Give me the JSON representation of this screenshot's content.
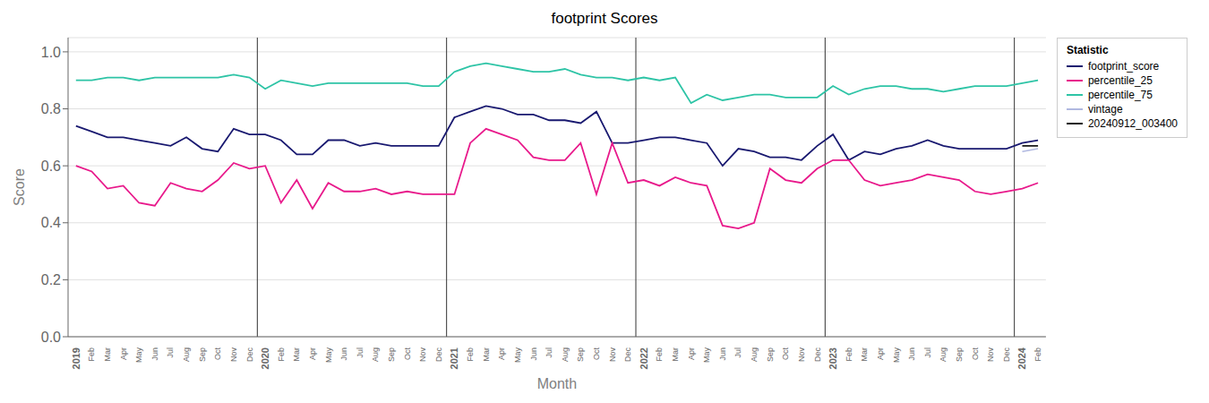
{
  "chart_data": {
    "type": "line",
    "title": "footprint Scores",
    "xlabel": "Month",
    "ylabel": "Score",
    "legend_title": "Statistic",
    "legend": "upper right",
    "grid": true,
    "ylim": [
      0.0,
      1.05
    ],
    "yticks": [
      {
        "value": 0,
        "label": "0.0"
      },
      0.2,
      0.4,
      0.6,
      0.8,
      {
        "value": 1,
        "label": "1.0"
      }
    ],
    "categories": [
      "2019",
      "Feb",
      "Mar",
      "Apr",
      "May",
      "Jun",
      "Jul",
      "Aug",
      "Sep",
      "Oct",
      "Nov",
      "Dec",
      "2020",
      "Feb",
      "Mar",
      "Apr",
      "May",
      "Jun",
      "Jul",
      "Aug",
      "Sep",
      "Oct",
      "Nov",
      "Dec",
      "2021",
      "Feb",
      "Mar",
      "Apr",
      "May",
      "Jun",
      "Jul",
      "Aug",
      "Sep",
      "Oct",
      "Nov",
      "Dec",
      "2022",
      "Feb",
      "Mar",
      "Apr",
      "May",
      "Jun",
      "Jul",
      "Aug",
      "Sep",
      "Oct",
      "Nov",
      "Dec",
      "2023",
      "Feb",
      "Mar",
      "Apr",
      "May",
      "Jun",
      "Jul",
      "Aug",
      "Sep",
      "Oct",
      "Nov",
      "Dec",
      "2024",
      "Feb"
    ],
    "series": [
      {
        "name": "footprint_score",
        "color": "#191970",
        "values": [
          0.74,
          0.72,
          0.7,
          0.7,
          0.69,
          0.68,
          0.67,
          0.7,
          0.66,
          0.65,
          0.73,
          0.71,
          0.71,
          0.69,
          0.64,
          0.64,
          0.69,
          0.69,
          0.67,
          0.68,
          0.67,
          0.67,
          0.67,
          0.67,
          0.77,
          0.79,
          0.81,
          0.8,
          0.78,
          0.78,
          0.76,
          0.76,
          0.75,
          0.79,
          0.68,
          0.68,
          0.69,
          0.7,
          0.7,
          0.69,
          0.68,
          0.6,
          0.66,
          0.65,
          0.63,
          0.63,
          0.62,
          0.67,
          0.71,
          0.62,
          0.65,
          0.64,
          0.66,
          0.67,
          0.69,
          0.67,
          0.66,
          0.66,
          0.66,
          0.66,
          0.68,
          0.69
        ]
      },
      {
        "name": "percentile_25",
        "color": "#e8198b",
        "values": [
          0.6,
          0.58,
          0.52,
          0.53,
          0.47,
          0.46,
          0.54,
          0.52,
          0.51,
          0.55,
          0.61,
          0.59,
          0.6,
          0.47,
          0.55,
          0.45,
          0.54,
          0.51,
          0.51,
          0.52,
          0.5,
          0.51,
          0.5,
          0.5,
          0.5,
          0.68,
          0.73,
          0.71,
          0.69,
          0.63,
          0.62,
          0.62,
          0.68,
          0.5,
          0.68,
          0.54,
          0.55,
          0.53,
          0.56,
          0.54,
          0.53,
          0.39,
          0.38,
          0.4,
          0.59,
          0.55,
          0.54,
          0.59,
          0.62,
          0.62,
          0.55,
          0.53,
          0.54,
          0.55,
          0.57,
          0.56,
          0.55,
          0.51,
          0.5,
          0.51,
          0.52,
          0.54
        ]
      },
      {
        "name": "percentile_75",
        "color": "#2ec4a6",
        "values": [
          0.9,
          0.9,
          0.91,
          0.91,
          0.9,
          0.91,
          0.91,
          0.91,
          0.91,
          0.91,
          0.92,
          0.91,
          0.87,
          0.9,
          0.89,
          0.88,
          0.89,
          0.89,
          0.89,
          0.89,
          0.89,
          0.89,
          0.88,
          0.88,
          0.93,
          0.95,
          0.96,
          0.95,
          0.94,
          0.93,
          0.93,
          0.94,
          0.92,
          0.91,
          0.91,
          0.9,
          0.91,
          0.9,
          0.91,
          0.82,
          0.85,
          0.83,
          0.84,
          0.85,
          0.85,
          0.84,
          0.84,
          0.84,
          0.88,
          0.85,
          0.87,
          0.88,
          0.88,
          0.87,
          0.87,
          0.86,
          0.87,
          0.88,
          0.88,
          0.88,
          0.89,
          0.9
        ]
      },
      {
        "name": "vintage",
        "color": "#b0b8e0",
        "values": [
          null,
          null,
          null,
          null,
          null,
          null,
          null,
          null,
          null,
          null,
          null,
          null,
          null,
          null,
          null,
          null,
          null,
          null,
          null,
          null,
          null,
          null,
          null,
          null,
          null,
          null,
          null,
          null,
          null,
          null,
          null,
          null,
          null,
          null,
          null,
          null,
          null,
          null,
          null,
          null,
          null,
          null,
          null,
          null,
          null,
          null,
          null,
          null,
          null,
          null,
          null,
          null,
          null,
          null,
          null,
          null,
          null,
          null,
          null,
          null,
          0.65,
          0.66
        ]
      },
      {
        "name": "20240912_003400",
        "color": "#1a1a1a",
        "values": [
          null,
          null,
          null,
          null,
          null,
          null,
          null,
          null,
          null,
          null,
          null,
          null,
          null,
          null,
          null,
          null,
          null,
          null,
          null,
          null,
          null,
          null,
          null,
          null,
          null,
          null,
          null,
          null,
          null,
          null,
          null,
          null,
          null,
          null,
          null,
          null,
          null,
          null,
          null,
          null,
          null,
          null,
          null,
          null,
          null,
          null,
          null,
          null,
          null,
          null,
          null,
          null,
          null,
          null,
          null,
          null,
          null,
          null,
          null,
          null,
          0.67,
          0.67
        ]
      }
    ]
  }
}
